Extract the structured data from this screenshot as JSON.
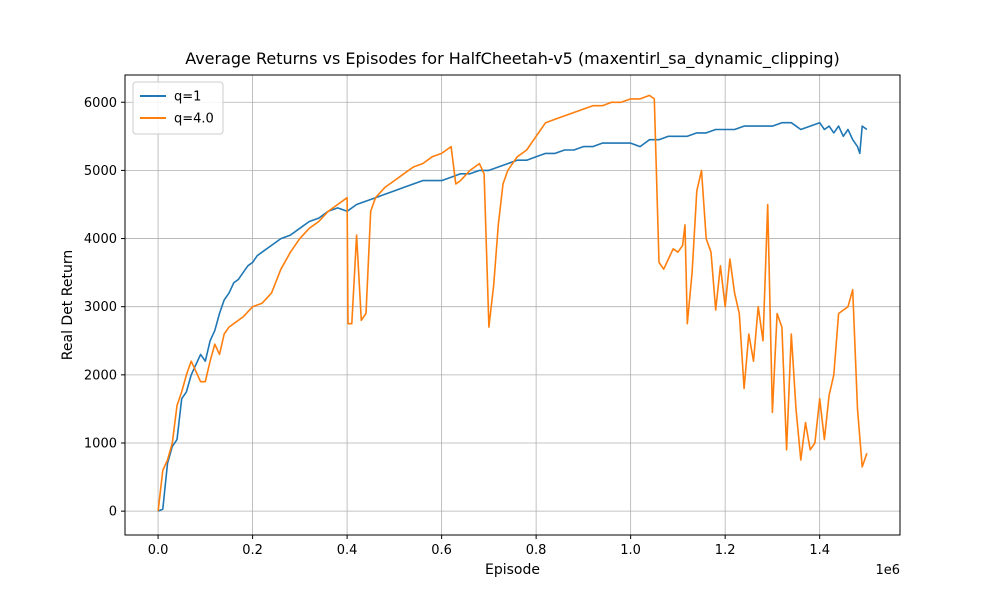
{
  "chart_data": {
    "type": "line",
    "title": "Average Returns vs Episodes for HalfCheetah-v5 (maxentirl_sa_dynamic_clipping)",
    "xlabel": "Episode",
    "ylabel": "Real Det Return",
    "x_offset_label": "1e6",
    "xlim": [
      -0.07,
      1.57
    ],
    "ylim": [
      -350,
      6400
    ],
    "x_ticks": [
      0.0,
      0.2,
      0.4,
      0.6,
      0.8,
      1.0,
      1.2,
      1.4
    ],
    "x_tick_labels": [
      "0.0",
      "0.2",
      "0.4",
      "0.6",
      "0.8",
      "1.0",
      "1.2",
      "1.4"
    ],
    "y_ticks": [
      0,
      1000,
      2000,
      3000,
      4000,
      5000,
      6000
    ],
    "y_tick_labels": [
      "0",
      "1000",
      "2000",
      "3000",
      "4000",
      "5000",
      "6000"
    ],
    "grid": true,
    "legend_position": "top-left",
    "series": [
      {
        "name": "q=1",
        "color": "#1f77b4",
        "x": [
          0.0,
          0.01,
          0.02,
          0.03,
          0.04,
          0.05,
          0.06,
          0.07,
          0.08,
          0.09,
          0.1,
          0.11,
          0.12,
          0.13,
          0.14,
          0.15,
          0.16,
          0.17,
          0.18,
          0.19,
          0.2,
          0.21,
          0.22,
          0.24,
          0.26,
          0.28,
          0.3,
          0.32,
          0.34,
          0.36,
          0.38,
          0.4,
          0.42,
          0.44,
          0.46,
          0.48,
          0.5,
          0.52,
          0.54,
          0.56,
          0.58,
          0.6,
          0.62,
          0.64,
          0.66,
          0.68,
          0.7,
          0.72,
          0.74,
          0.76,
          0.78,
          0.8,
          0.82,
          0.84,
          0.86,
          0.88,
          0.9,
          0.92,
          0.94,
          0.96,
          0.98,
          1.0,
          1.02,
          1.04,
          1.06,
          1.08,
          1.1,
          1.12,
          1.14,
          1.16,
          1.18,
          1.2,
          1.22,
          1.24,
          1.26,
          1.28,
          1.3,
          1.32,
          1.34,
          1.36,
          1.38,
          1.4,
          1.41,
          1.42,
          1.43,
          1.44,
          1.45,
          1.46,
          1.47,
          1.48,
          1.485,
          1.49,
          1.5
        ],
        "y": [
          0,
          30,
          700,
          950,
          1050,
          1650,
          1750,
          2000,
          2150,
          2300,
          2200,
          2500,
          2650,
          2900,
          3100,
          3200,
          3350,
          3400,
          3500,
          3600,
          3650,
          3750,
          3800,
          3900,
          4000,
          4050,
          4150,
          4250,
          4300,
          4400,
          4450,
          4400,
          4500,
          4550,
          4600,
          4650,
          4700,
          4750,
          4800,
          4850,
          4850,
          4850,
          4900,
          4950,
          4950,
          5000,
          5000,
          5050,
          5100,
          5150,
          5150,
          5200,
          5250,
          5250,
          5300,
          5300,
          5350,
          5350,
          5400,
          5400,
          5400,
          5400,
          5350,
          5450,
          5450,
          5500,
          5500,
          5500,
          5550,
          5550,
          5600,
          5600,
          5600,
          5650,
          5650,
          5650,
          5650,
          5700,
          5700,
          5600,
          5650,
          5700,
          5600,
          5650,
          5550,
          5650,
          5500,
          5600,
          5450,
          5350,
          5250,
          5650,
          5600
        ]
      },
      {
        "name": "q=4.0",
        "color": "#ff7f0e",
        "x": [
          0.0,
          0.01,
          0.02,
          0.03,
          0.04,
          0.05,
          0.06,
          0.07,
          0.08,
          0.09,
          0.1,
          0.11,
          0.12,
          0.13,
          0.14,
          0.15,
          0.16,
          0.18,
          0.2,
          0.22,
          0.24,
          0.26,
          0.28,
          0.3,
          0.32,
          0.34,
          0.36,
          0.38,
          0.4,
          0.402,
          0.41,
          0.42,
          0.43,
          0.44,
          0.45,
          0.46,
          0.48,
          0.5,
          0.52,
          0.54,
          0.56,
          0.58,
          0.6,
          0.62,
          0.63,
          0.64,
          0.66,
          0.68,
          0.69,
          0.7,
          0.705,
          0.71,
          0.72,
          0.73,
          0.74,
          0.75,
          0.76,
          0.78,
          0.8,
          0.82,
          0.84,
          0.86,
          0.88,
          0.9,
          0.92,
          0.94,
          0.96,
          0.98,
          1.0,
          1.02,
          1.04,
          1.05,
          1.06,
          1.07,
          1.08,
          1.09,
          1.1,
          1.11,
          1.115,
          1.12,
          1.13,
          1.14,
          1.15,
          1.16,
          1.17,
          1.18,
          1.19,
          1.2,
          1.21,
          1.22,
          1.23,
          1.24,
          1.25,
          1.26,
          1.27,
          1.28,
          1.29,
          1.3,
          1.31,
          1.32,
          1.33,
          1.34,
          1.35,
          1.36,
          1.37,
          1.38,
          1.39,
          1.4,
          1.41,
          1.42,
          1.43,
          1.44,
          1.45,
          1.46,
          1.47,
          1.48,
          1.49,
          1.5
        ],
        "y": [
          0,
          600,
          750,
          1000,
          1550,
          1750,
          2000,
          2200,
          2050,
          1900,
          1900,
          2200,
          2450,
          2300,
          2600,
          2700,
          2750,
          2850,
          3000,
          3050,
          3200,
          3550,
          3800,
          4000,
          4150,
          4250,
          4400,
          4500,
          4600,
          2750,
          2750,
          4050,
          2800,
          2900,
          4400,
          4600,
          4750,
          4850,
          4950,
          5050,
          5100,
          5200,
          5250,
          5350,
          4800,
          4850,
          5000,
          5100,
          4950,
          2700,
          3000,
          3300,
          4200,
          4800,
          5000,
          5100,
          5200,
          5300,
          5500,
          5700,
          5750,
          5800,
          5850,
          5900,
          5950,
          5950,
          6000,
          6000,
          6050,
          6050,
          6100,
          6050,
          3650,
          3550,
          3700,
          3850,
          3800,
          3900,
          4200,
          2750,
          3500,
          4700,
          5000,
          4000,
          3800,
          2950,
          3600,
          3000,
          3700,
          3200,
          2900,
          1800,
          2600,
          2200,
          3000,
          2500,
          4500,
          1450,
          2900,
          2700,
          900,
          2600,
          1500,
          750,
          1300,
          900,
          1000,
          1650,
          1050,
          1700,
          2000,
          2900,
          2950,
          3000,
          3250,
          1500,
          650,
          850
        ]
      }
    ]
  }
}
